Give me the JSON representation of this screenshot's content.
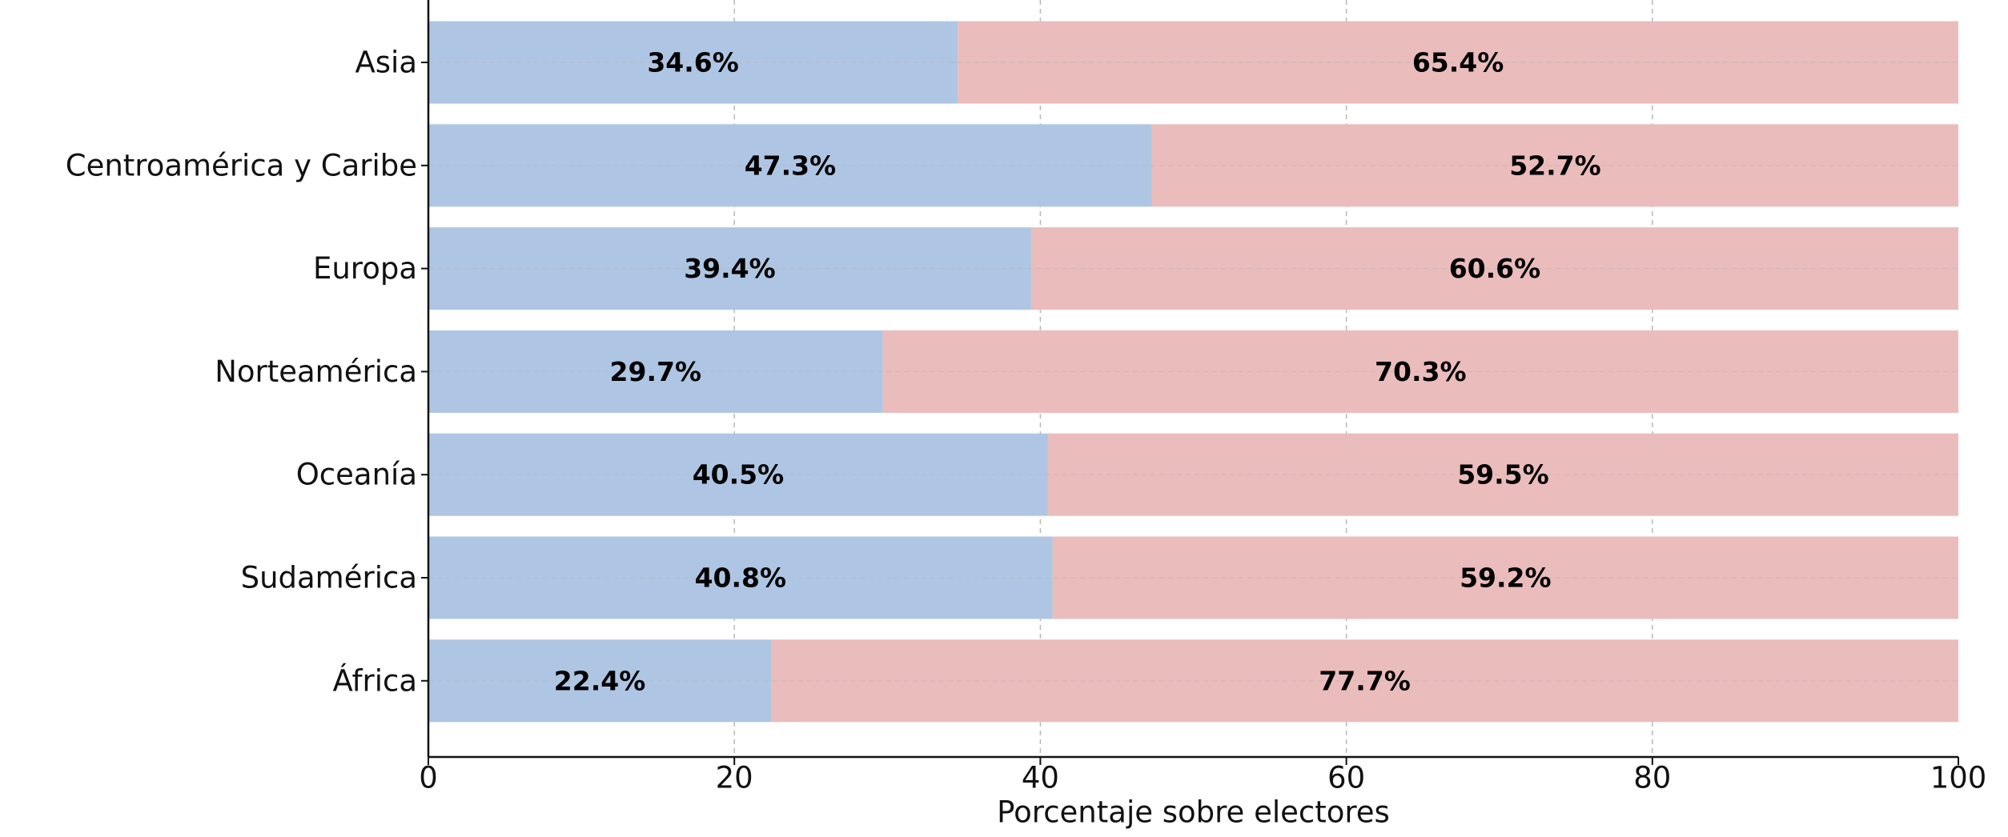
{
  "chart_data": {
    "type": "bar",
    "orientation": "horizontal",
    "stacked": true,
    "categories": [
      "Asia",
      "Centroamérica y Caribe",
      "Europa",
      "Norteamérica",
      "Oceanía",
      "Sudamérica",
      "África"
    ],
    "series": [
      {
        "color": "#aec6e4",
        "values": [
          34.6,
          47.3,
          39.4,
          29.7,
          40.5,
          40.8,
          22.4
        ],
        "labels": [
          "34.6%",
          "47.3%",
          "39.4%",
          "29.7%",
          "40.5%",
          "40.8%",
          "22.4%"
        ]
      },
      {
        "color": "#ebbcbc",
        "values": [
          65.4,
          52.7,
          60.6,
          70.3,
          59.5,
          59.2,
          77.7
        ],
        "labels": [
          "65.4%",
          "52.7%",
          "60.6%",
          "70.3%",
          "59.5%",
          "59.2%",
          "77.7%"
        ]
      }
    ],
    "xlabel": "Porcentaje sobre electores",
    "xlim": [
      0,
      100
    ],
    "xticks": [
      "0",
      "20",
      "40",
      "60",
      "80",
      "100"
    ],
    "grid": true
  }
}
